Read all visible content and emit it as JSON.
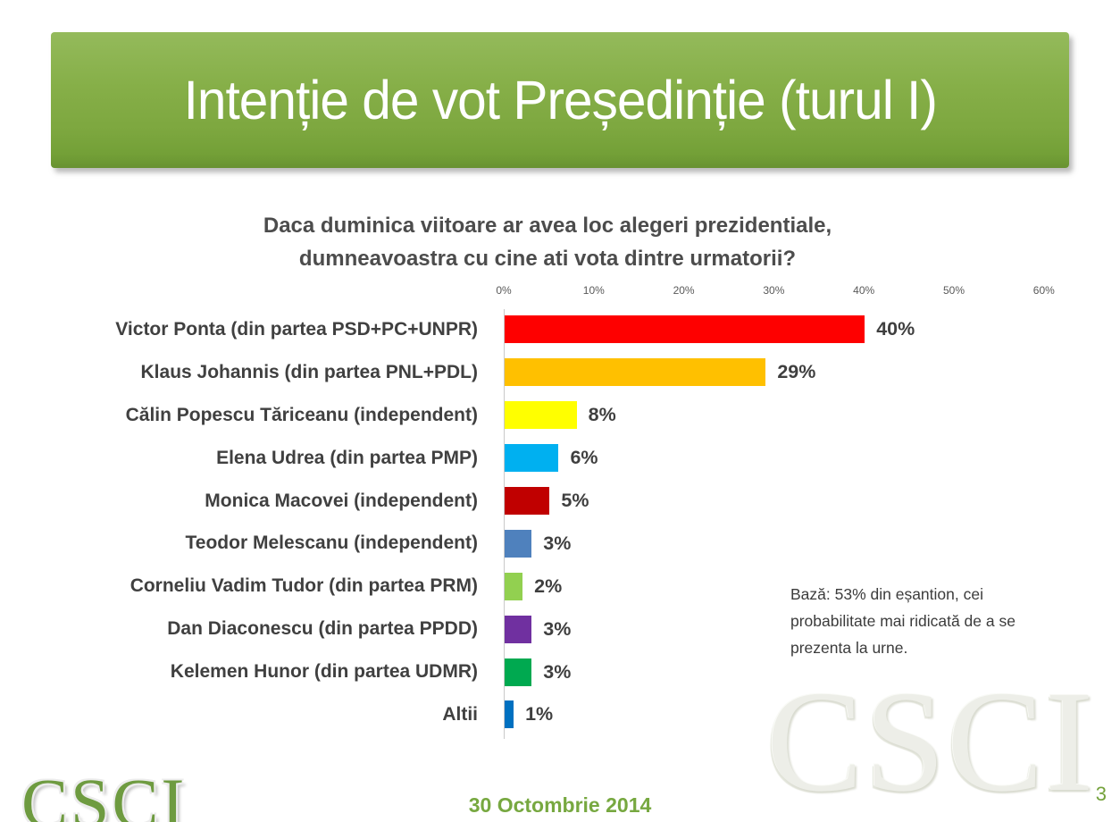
{
  "slide": {
    "title": "Intenție de vot Președinție (turul I)",
    "subtitle_line1": "Daca duminica viitoare ar avea loc alegeri prezidentiale,",
    "subtitle_line2": "dumneavoastra cu cine ati vota dintre urmatorii?",
    "note_lines": {
      "0": "Bază: 53% din eșantion, cei",
      "1": "probabilitate mai ridicată de a se",
      "2": "prezenta la urne."
    },
    "footer_date": "30 Octombrie 2014",
    "page_number": "3",
    "logo_text": "CSCI",
    "watermark_text": "CSCI",
    "accent_green": "#7DA73F",
    "footer_green": "#77A840"
  },
  "chart_data": {
    "type": "bar",
    "orientation": "horizontal",
    "title": "Daca duminica viitoare ar avea loc alegeri prezidentiale, dumneavoastra cu cine ati vota dintre urmatorii?",
    "categories": [
      "Victor Ponta (din partea PSD+PC+UNPR)",
      "Klaus Johannis (din partea PNL+PDL)",
      "Călin Popescu Tăriceanu (independent)",
      "Elena Udrea (din partea PMP)",
      "Monica Macovei (independent)",
      "Teodor Melescanu (independent)",
      "Corneliu Vadim Tudor (din partea PRM)",
      "Dan Diaconescu (din partea PPDD)",
      "Kelemen Hunor (din partea UDMR)",
      "Altii"
    ],
    "values": [
      40,
      29,
      8,
      6,
      5,
      3,
      2,
      3,
      3,
      1
    ],
    "value_labels": [
      "40%",
      "29%",
      "8%",
      "6%",
      "5%",
      "3%",
      "2%",
      "3%",
      "3%",
      "1%"
    ],
    "bar_colors": [
      "#FE0000",
      "#FFC000",
      "#FFFF00",
      "#00B0F0",
      "#C00000",
      "#4F81BD",
      "#92D050",
      "#7030A0",
      "#00A950",
      "#0070C0"
    ],
    "x_ticks": [
      "0%",
      "10%",
      "20%",
      "30%",
      "40%",
      "50%",
      "60%"
    ],
    "xlim": [
      0,
      60
    ],
    "grid": "none",
    "legend": "none",
    "annotation": "Bază: 53% din eșantion, cei probabilitate mai ridicată de a se prezenta la urne."
  }
}
